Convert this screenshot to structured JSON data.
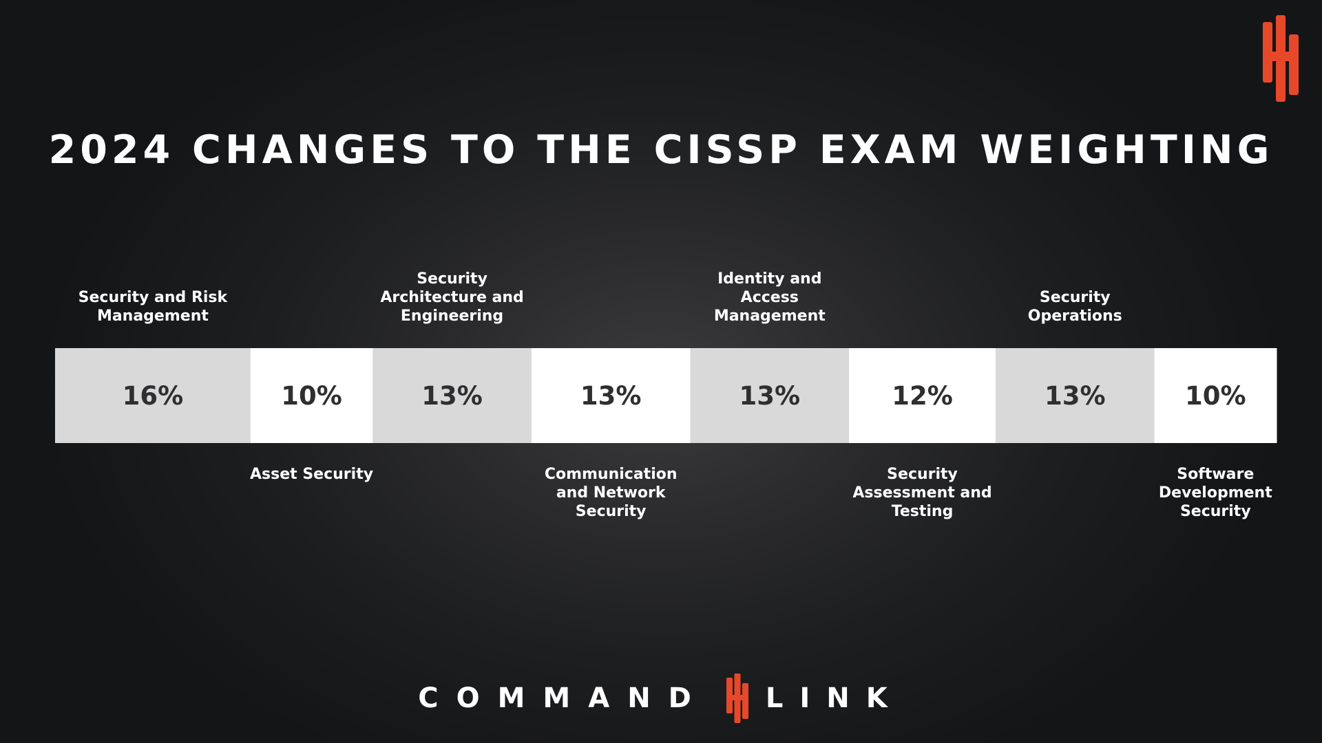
{
  "colors": {
    "accent": "#e8482a",
    "segment_light": "#d9d9d9",
    "segment_white": "#ffffff"
  },
  "brand": {
    "word_left": "COMMAND",
    "word_right": "LINK",
    "icon": "commandlink-logo-icon"
  },
  "chart_data": {
    "type": "bar",
    "orientation": "horizontal-stacked",
    "title": "2024 CHANGES TO THE CISSP EXAM WEIGHTING",
    "unit": "%",
    "categories": [
      "Security and Risk Management",
      "Asset Security",
      "Security Architecture and Engineering",
      "Communication and Network Security",
      "Identity and Access Management",
      "Security Assessment and Testing",
      "Security Operations",
      "Software Development Security"
    ],
    "values": [
      16,
      10,
      13,
      13,
      13,
      12,
      13,
      10
    ],
    "value_labels": [
      "16%",
      "10%",
      "13%",
      "13%",
      "13%",
      "12%",
      "13%",
      "10%"
    ],
    "label_lines": [
      [
        "Security and Risk",
        "Management"
      ],
      [
        "Asset Security"
      ],
      [
        "Security",
        "Architecture and",
        "Engineering"
      ],
      [
        "Communication",
        "and Network",
        "Security"
      ],
      [
        "Identity and",
        "Access",
        "Management"
      ],
      [
        "Security",
        "Assessment and",
        "Testing"
      ],
      [
        "Security",
        "Operations"
      ],
      [
        "Software",
        "Development",
        "Security"
      ]
    ],
    "label_positions": [
      "above",
      "below",
      "above",
      "below",
      "above",
      "below",
      "above",
      "below"
    ],
    "segment_fills": [
      "light",
      "white",
      "light",
      "white",
      "light",
      "white",
      "light",
      "white"
    ],
    "legend": "none",
    "grid": false
  }
}
